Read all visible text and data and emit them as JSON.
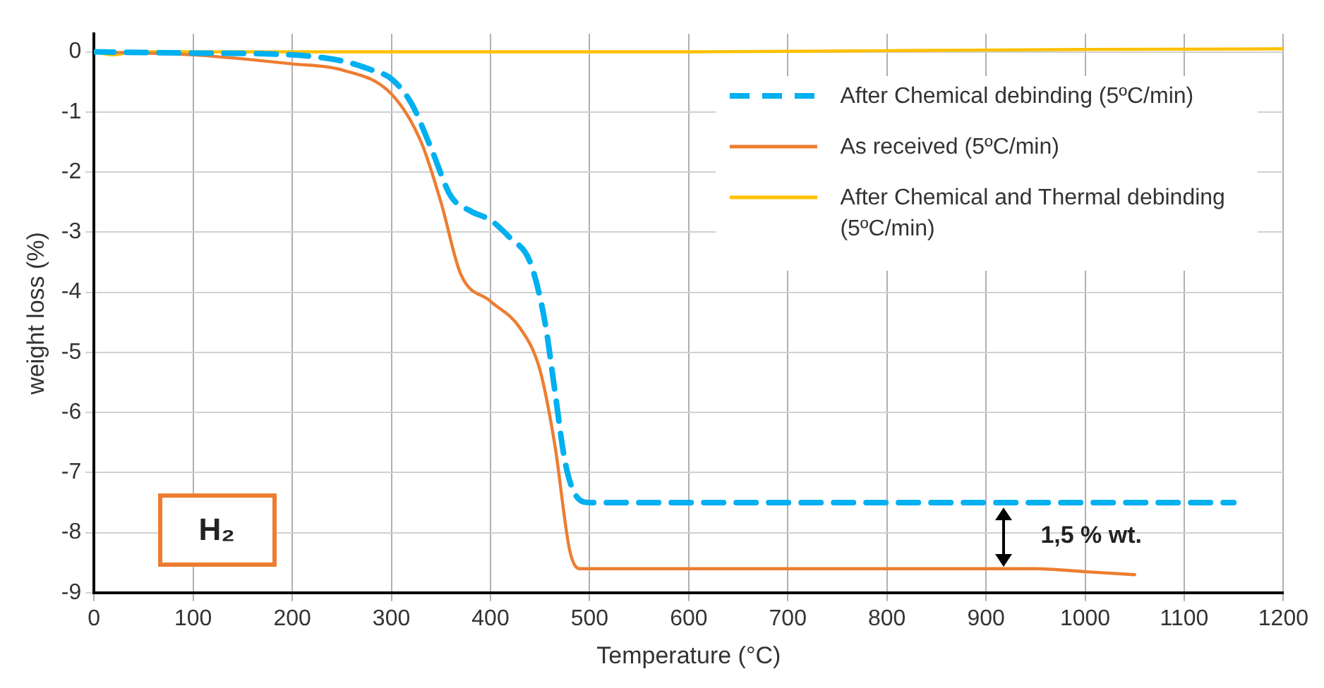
{
  "chart_data": {
    "type": "line",
    "xlabel": "Temperature (°C)",
    "ylabel": "weight loss (%)",
    "xlim": [
      0,
      1200
    ],
    "xticks": [
      0,
      100,
      200,
      300,
      400,
      500,
      600,
      700,
      800,
      900,
      1000,
      1100,
      1200
    ],
    "ylim": [
      -9,
      0.3
    ],
    "yticks": [
      -9,
      -8,
      -7,
      -6,
      -5,
      -4,
      -3,
      -2,
      -1,
      0
    ],
    "grid": true,
    "legend": "top right",
    "marker": "none",
    "series": [
      {
        "name": "After Chemical debinding (5ºC/min)",
        "color": "#00b0f0",
        "line_style": "dashed",
        "x": [
          0,
          100,
          200,
          250,
          280,
          300,
          320,
          340,
          360,
          380,
          400,
          420,
          440,
          455,
          465,
          475,
          485,
          500,
          600,
          800,
          1000,
          1150
        ],
        "values": [
          0,
          -0.02,
          -0.05,
          -0.15,
          -0.3,
          -0.45,
          -0.85,
          -1.6,
          -2.4,
          -2.65,
          -2.8,
          -3.1,
          -3.5,
          -4.5,
          -5.65,
          -6.8,
          -7.35,
          -7.5,
          -7.5,
          -7.5,
          -7.5,
          -7.5
        ]
      },
      {
        "name": "As received (5ºC/min)",
        "color": "#ed7d31",
        "line_style": "solid",
        "x": [
          0,
          100,
          200,
          250,
          300,
          330,
          350,
          370,
          400,
          430,
          450,
          465,
          480,
          490,
          600,
          800,
          950,
          1000,
          1050
        ],
        "values": [
          0,
          -0.05,
          -0.2,
          -0.3,
          -0.7,
          -1.5,
          -2.5,
          -3.7,
          -4.15,
          -4.6,
          -5.3,
          -6.55,
          -8.3,
          -8.6,
          -8.6,
          -8.6,
          -8.6,
          -8.65,
          -8.7
        ]
      },
      {
        "name": "After Chemical and Thermal debinding (5ºC/min)",
        "color": "#ffc000",
        "line_style": "solid",
        "x": [
          0,
          20,
          40,
          200,
          400,
          600,
          800,
          1000,
          1200
        ],
        "values": [
          0,
          -0.05,
          0,
          0,
          0,
          0,
          0.02,
          0.04,
          0.05
        ]
      }
    ],
    "annotations": [
      "H₂",
      "1,5 % wt."
    ]
  }
}
